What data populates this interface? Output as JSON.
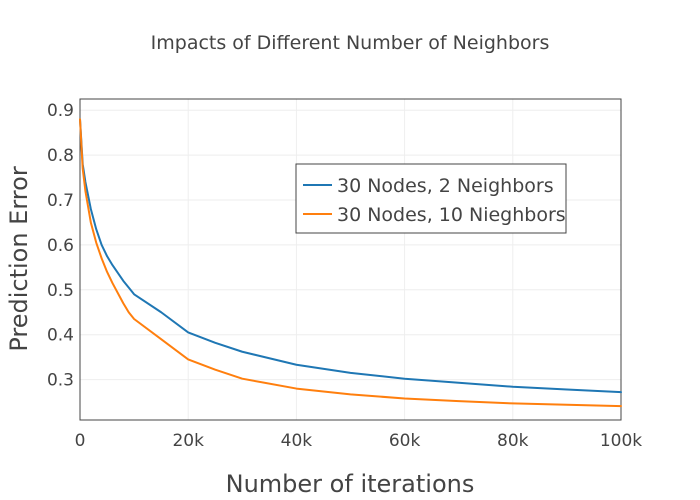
{
  "chart_data": {
    "type": "line",
    "title": "Impacts of Different Number of Neighbors",
    "xlabel": "Number of iterations",
    "ylabel": "Prediction Error",
    "xlim": [
      0,
      100000
    ],
    "ylim": [
      0.21,
      0.925
    ],
    "grid": true,
    "legend_position": "top-right",
    "xticks": [
      {
        "value": 0,
        "label": "0"
      },
      {
        "value": 20000,
        "label": "20k"
      },
      {
        "value": 40000,
        "label": "40k"
      },
      {
        "value": 60000,
        "label": "60k"
      },
      {
        "value": 80000,
        "label": "80k"
      },
      {
        "value": 100000,
        "label": "100k"
      }
    ],
    "yticks": [
      {
        "value": 0.3,
        "label": "0.3"
      },
      {
        "value": 0.4,
        "label": "0.4"
      },
      {
        "value": 0.5,
        "label": "0.5"
      },
      {
        "value": 0.6,
        "label": "0.6"
      },
      {
        "value": 0.7,
        "label": "0.7"
      },
      {
        "value": 0.8,
        "label": "0.8"
      },
      {
        "value": 0.9,
        "label": "0.9"
      }
    ],
    "series": [
      {
        "name": "30 Nodes, 2 Neighbors",
        "color": "#1f77b4",
        "x": [
          0,
          500,
          1000,
          2000,
          3000,
          4000,
          5000,
          6000,
          8000,
          10000,
          15000,
          20000,
          25000,
          30000,
          40000,
          50000,
          60000,
          70000,
          80000,
          90000,
          100000
        ],
        "y": [
          0.88,
          0.78,
          0.74,
          0.68,
          0.635,
          0.6,
          0.575,
          0.555,
          0.52,
          0.49,
          0.45,
          0.405,
          0.382,
          0.362,
          0.333,
          0.315,
          0.302,
          0.293,
          0.284,
          0.278,
          0.272
        ]
      },
      {
        "name": "30 Nodes, 10 Nieghbors",
        "color": "#ff7f0e",
        "x": [
          0,
          500,
          1000,
          2000,
          3000,
          4000,
          5000,
          6000,
          8000,
          9000,
          10000,
          15000,
          20000,
          25000,
          30000,
          40000,
          50000,
          60000,
          70000,
          80000,
          90000,
          100000
        ],
        "y": [
          0.88,
          0.77,
          0.72,
          0.65,
          0.605,
          0.57,
          0.54,
          0.515,
          0.47,
          0.45,
          0.435,
          0.39,
          0.345,
          0.322,
          0.302,
          0.28,
          0.267,
          0.258,
          0.252,
          0.247,
          0.244,
          0.241
        ]
      }
    ]
  }
}
